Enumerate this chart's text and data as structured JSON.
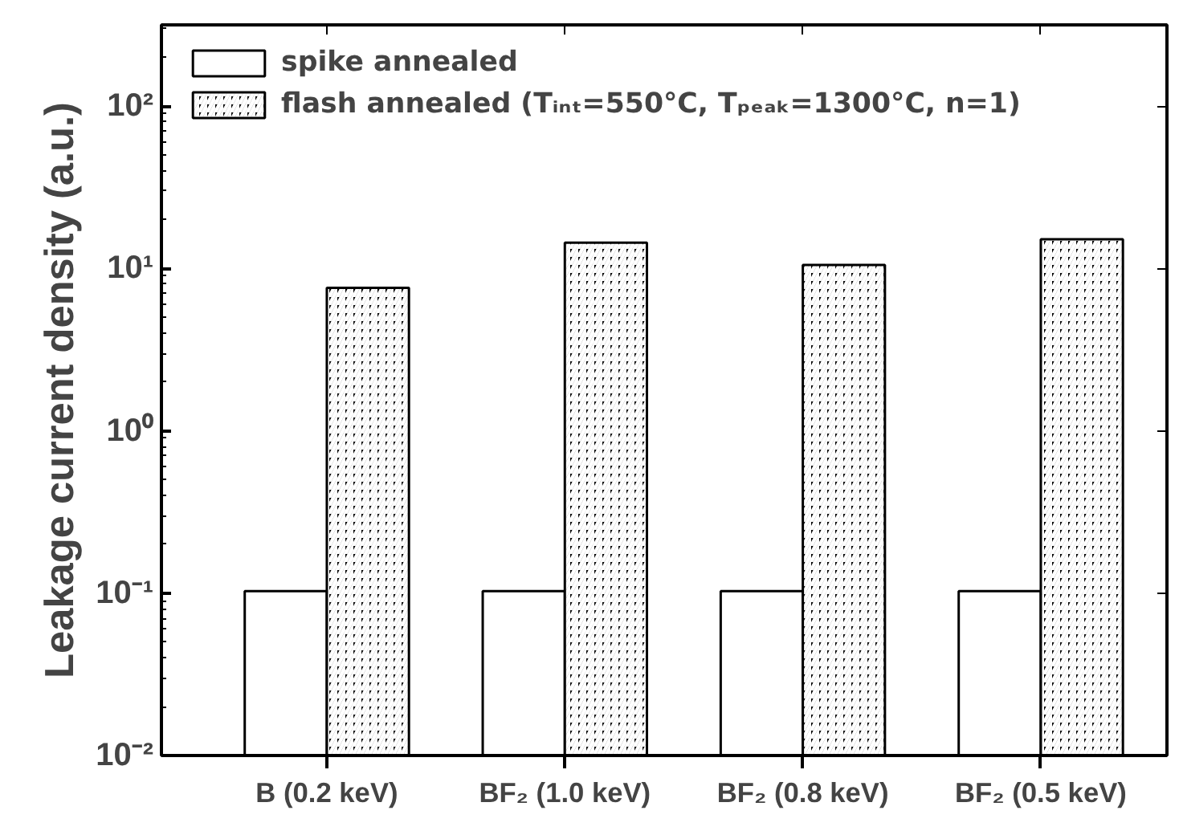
{
  "chart_data": {
    "type": "bar",
    "ylabel": "Leakage current density (a.u.)",
    "categories": [
      "B (0.2 keV)",
      "BF₂ (1.0 keV)",
      "BF₂ (0.8 keV)",
      "BF₂ (0.5 keV)"
    ],
    "series": [
      {
        "name": "spike annealed",
        "color": "#ffffff",
        "values": [
          0.103,
          0.103,
          0.103,
          0.103
        ]
      },
      {
        "name": "flash annealed (Tᵢₙₜ=550°C, Tₚₑₐₖ=1300°C, n=1)",
        "color": "#000000",
        "values": [
          7.6,
          14.4,
          10.5,
          15.1
        ]
      }
    ],
    "log": true,
    "ylim": [
      0.01,
      316
    ],
    "yticks": [
      {
        "value": 0.01,
        "label": "10⁻²"
      },
      {
        "value": 0.1,
        "label": "10⁻¹"
      },
      {
        "value": 1,
        "label": "10⁰"
      },
      {
        "value": 10,
        "label": "10¹"
      },
      {
        "value": 100,
        "label": "10²"
      }
    ],
    "grid": false,
    "legend": "top left"
  }
}
